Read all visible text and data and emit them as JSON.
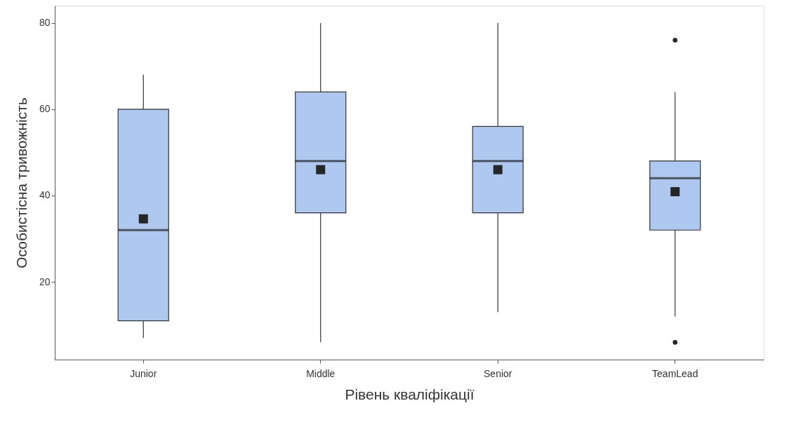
{
  "chart_data": {
    "type": "box",
    "xlabel": "Рівень кваліфікації",
    "ylabel": "Особистісна тривожність",
    "categories": [
      "Junior",
      "Middle",
      "Senior",
      "TeamLead"
    ],
    "boxes": [
      {
        "low": 7,
        "q1": 11,
        "median": 32,
        "q3": 60,
        "high": 68,
        "mean": 34.6
      },
      {
        "low": 6,
        "q1": 36,
        "median": 48,
        "q3": 64,
        "high": 80,
        "mean": 46
      },
      {
        "low": 13,
        "q1": 36,
        "median": 48,
        "q3": 56,
        "high": 80,
        "mean": 46
      },
      {
        "low": 12,
        "q1": 32,
        "median": 44,
        "q3": 48,
        "high": 64,
        "mean": 40.9,
        "outliers": [
          76,
          6
        ]
      }
    ],
    "color": "#aec8f0",
    "ylim": [
      2,
      84
    ],
    "yticks": [
      20,
      40,
      60,
      80
    ],
    "grid": false
  }
}
